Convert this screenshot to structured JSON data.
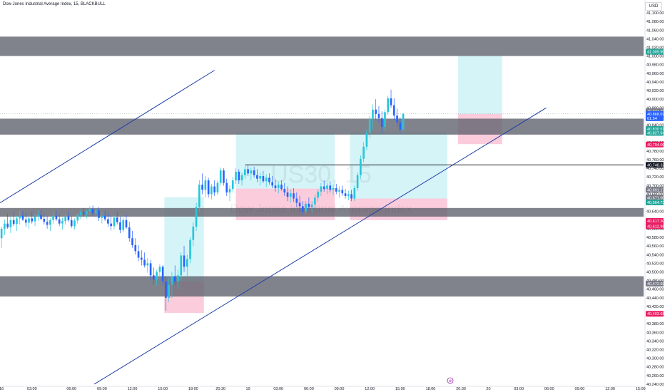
{
  "header": {
    "title": "Dow Jones Industrial Average Index, 15, BLACKBULL",
    "currency": "USD"
  },
  "watermark": {
    "symbol": "US30, 15",
    "subtitle": "Dow Jones Industrial Average Index"
  },
  "colors": {
    "bull": "#2962ff",
    "bear": "#e91e63",
    "bull_wick": "#26c6da",
    "zone_gray": "#5d606b",
    "target_zone": "#b2ebf2",
    "stop_zone": "#f8bbd0",
    "trendline": "#1e3fa8",
    "level_line": "#000000"
  },
  "chart_data": {
    "type": "candlestick",
    "title": "Dow Jones Industrial Average Index, 15, BLACKBULL",
    "symbol": "US30",
    "interval": "15",
    "y_axis": {
      "position": "right",
      "ylim": [
        40235,
        41110
      ],
      "ticks": [
        41100,
        41080,
        41060,
        41040,
        41020,
        41000,
        40980,
        40960,
        40940,
        40920,
        40900,
        40880,
        40860,
        40840,
        40820,
        40800,
        40780,
        40760,
        40740,
        40720,
        40700,
        40680,
        40660,
        40640,
        40620,
        40600,
        40580,
        40560,
        40540,
        40520,
        40500,
        40480,
        40460,
        40440,
        40420,
        40400,
        40380,
        40360,
        40340,
        40320,
        40300,
        40280,
        40260,
        40240
      ]
    },
    "x_axis": {
      "tick_labels": [
        "16",
        "03:00",
        "06:00",
        "09:00",
        "12:00",
        "15:00",
        "18:00",
        "20:30",
        "19",
        "03:00",
        "06:00",
        "09:00",
        "12:00",
        "15:00",
        "18:00",
        "20:30",
        "20",
        "03:00",
        "06:00",
        "09:00",
        "12:00",
        "15:00"
      ],
      "tick_slots": [
        0,
        10,
        23,
        33,
        43,
        53,
        63,
        72,
        81,
        91,
        101,
        111,
        121,
        131,
        141,
        151,
        160,
        170,
        180,
        190,
        200,
        210
      ]
    },
    "price_tags": [
      {
        "value": "41,009.90",
        "price": 41010,
        "color": "#26a69a"
      },
      {
        "value": "40,871.20",
        "price": 40872,
        "color": "#787b86"
      },
      {
        "value": "40,868.07",
        "price": 40866,
        "color": "#2962ff"
      },
      {
        "value": "01:54",
        "price": 40856,
        "color": "#2962ff"
      },
      {
        "value": "40,830.51",
        "price": 40831,
        "color": "#26a69a"
      },
      {
        "value": "40,827.94",
        "price": 40822,
        "color": "#26a69a"
      },
      {
        "value": "40,794.00",
        "price": 40795,
        "color": "#e91e63"
      },
      {
        "value": "40,748.32",
        "price": 40748,
        "color": "#131722"
      },
      {
        "value": "40,691.17",
        "price": 40690,
        "color": "#787b86"
      },
      {
        "value": "40,671.00",
        "price": 40672,
        "color": "#787b86"
      },
      {
        "value": "40,664.73",
        "price": 40661,
        "color": "#26a69a"
      },
      {
        "value": "40,617.30",
        "price": 40618,
        "color": "#e91e63"
      },
      {
        "value": "40,612.98",
        "price": 40606,
        "color": "#e91e63"
      },
      {
        "value": "40,472.60",
        "price": 40473,
        "color": "#787b86"
      },
      {
        "value": "40,403.68",
        "price": 40403,
        "color": "#e91e63"
      }
    ],
    "horizontal_zones": [
      {
        "from": 41000,
        "to": 41045
      },
      {
        "from": 40818,
        "to": 40855
      },
      {
        "from": 40628,
        "to": 40648
      },
      {
        "from": 40443,
        "to": 40490
      }
    ],
    "position_boxes": [
      {
        "x_from": 53.5,
        "x_to": 66.5,
        "target_top": 40673,
        "entry": 40478,
        "stop_bottom": 40405
      },
      {
        "x_from": 77,
        "x_to": 109.5,
        "target_top": 40824,
        "entry": 40693,
        "stop_bottom": 40620
      },
      {
        "x_from": 114.5,
        "x_to": 146.5,
        "target_top": 40824,
        "entry": 40670,
        "stop_bottom": 40620
      },
      {
        "x_from": 150,
        "x_to": 164.5,
        "target_top": 41000,
        "entry": 40866,
        "stop_bottom": 40796
      }
    ],
    "trendlines": [
      {
        "x1": -0.5,
        "y1": 40660,
        "x2": 70,
        "y2": 40967
      },
      {
        "x1": 30.5,
        "y1": 40240,
        "x2": 179,
        "y2": 40880
      }
    ],
    "level_line": {
      "price": 40748,
      "x_from": 80
    },
    "current_price": 40866,
    "candles": [
      [
        40578,
        40605,
        40555,
        40600
      ],
      [
        40600,
        40622,
        40585,
        40612
      ],
      [
        40612,
        40635,
        40600,
        40603
      ],
      [
        40603,
        40628,
        40590,
        40620
      ],
      [
        40620,
        40640,
        40606,
        40611
      ],
      [
        40611,
        40630,
        40595,
        40624
      ],
      [
        40624,
        40642,
        40610,
        40630
      ],
      [
        40630,
        40642,
        40618,
        40621
      ],
      [
        40621,
        40636,
        40605,
        40614
      ],
      [
        40614,
        40628,
        40600,
        40624
      ],
      [
        40624,
        40640,
        40612,
        40617
      ],
      [
        40617,
        40634,
        40606,
        40628
      ],
      [
        40628,
        40642,
        40618,
        40632
      ],
      [
        40632,
        40644,
        40620,
        40623
      ],
      [
        40623,
        40636,
        40610,
        40616
      ],
      [
        40616,
        40630,
        40600,
        40609
      ],
      [
        40609,
        40624,
        40595,
        40620
      ],
      [
        40620,
        40638,
        40612,
        40630
      ],
      [
        40630,
        40642,
        40618,
        40622
      ],
      [
        40622,
        40634,
        40606,
        40612
      ],
      [
        40612,
        40626,
        40598,
        40618
      ],
      [
        40618,
        40634,
        40610,
        40629
      ],
      [
        40629,
        40640,
        40616,
        40620
      ],
      [
        40620,
        40630,
        40602,
        40606
      ],
      [
        40606,
        40624,
        40598,
        40619
      ],
      [
        40619,
        40636,
        40612,
        40632
      ],
      [
        40632,
        40644,
        40622,
        40638
      ],
      [
        40638,
        40648,
        40628,
        40634
      ],
      [
        40634,
        40644,
        40624,
        40640
      ],
      [
        40640,
        40652,
        40632,
        40646
      ],
      [
        40646,
        40654,
        40630,
        40636
      ],
      [
        40636,
        40648,
        40626,
        40642
      ],
      [
        40642,
        40650,
        40618,
        40625
      ],
      [
        40625,
        40638,
        40612,
        40630
      ],
      [
        40630,
        40642,
        40618,
        40622
      ],
      [
        40622,
        40636,
        40605,
        40612
      ],
      [
        40612,
        40630,
        40596,
        40606
      ],
      [
        40606,
        40630,
        40598,
        40626
      ],
      [
        40626,
        40640,
        40610,
        40615
      ],
      [
        40615,
        40628,
        40590,
        40597
      ],
      [
        40597,
        40626,
        40592,
        40620
      ],
      [
        40620,
        40632,
        40600,
        40603
      ],
      [
        40603,
        40616,
        40570,
        40578
      ],
      [
        40578,
        40595,
        40556,
        40562
      ],
      [
        40562,
        40578,
        40540,
        40548
      ],
      [
        40548,
        40562,
        40525,
        40533
      ],
      [
        40533,
        40550,
        40515,
        40528
      ],
      [
        40528,
        40545,
        40510,
        40515
      ],
      [
        40515,
        40532,
        40498,
        40520
      ],
      [
        40520,
        40528,
        40480,
        40492
      ],
      [
        40492,
        40510,
        40470,
        40482
      ],
      [
        40482,
        40505,
        40468,
        40500
      ],
      [
        40500,
        40518,
        40485,
        40512
      ],
      [
        40512,
        40516,
        40470,
        40478
      ],
      [
        40478,
        40490,
        40410,
        40440
      ],
      [
        40440,
        40485,
        40430,
        40470
      ],
      [
        40470,
        40500,
        40440,
        40490
      ],
      [
        40490,
        40515,
        40470,
        40478
      ],
      [
        40478,
        40505,
        40460,
        40492
      ],
      [
        40492,
        40545,
        40480,
        40538
      ],
      [
        40538,
        40560,
        40500,
        40512
      ],
      [
        40512,
        40540,
        40490,
        40530
      ],
      [
        40530,
        40580,
        40520,
        40574
      ],
      [
        40574,
        40615,
        40560,
        40605
      ],
      [
        40605,
        40660,
        40595,
        40650
      ],
      [
        40650,
        40712,
        40640,
        40702
      ],
      [
        40702,
        40728,
        40680,
        40690
      ],
      [
        40690,
        40722,
        40672,
        40712
      ],
      [
        40712,
        40718,
        40672,
        40680
      ],
      [
        40680,
        40704,
        40668,
        40698
      ],
      [
        40698,
        40712,
        40676,
        40684
      ],
      [
        40684,
        40712,
        40678,
        40706
      ],
      [
        40706,
        40742,
        40700,
        40735
      ],
      [
        40735,
        40740,
        40700,
        40706
      ],
      [
        40706,
        40716,
        40676,
        40684
      ],
      [
        40684,
        40700,
        40664,
        40692
      ],
      [
        40692,
        40720,
        40684,
        40712
      ],
      [
        40712,
        40740,
        40704,
        40732
      ],
      [
        40732,
        40738,
        40704,
        40712
      ],
      [
        40712,
        40730,
        40700,
        40724
      ],
      [
        40724,
        40744,
        40716,
        40738
      ],
      [
        40738,
        40748,
        40722,
        40728
      ],
      [
        40728,
        40742,
        40712,
        40735
      ],
      [
        40735,
        40744,
        40718,
        40724
      ],
      [
        40724,
        40738,
        40708,
        40716
      ],
      [
        40716,
        40730,
        40700,
        40722
      ],
      [
        40722,
        40734,
        40706,
        40710
      ],
      [
        40710,
        40726,
        40696,
        40718
      ],
      [
        40718,
        40728,
        40702,
        40708
      ],
      [
        40708,
        40722,
        40694,
        40700
      ],
      [
        40700,
        40714,
        40686,
        40694
      ],
      [
        40694,
        40708,
        40682,
        40702
      ],
      [
        40702,
        40712,
        40688,
        40692
      ],
      [
        40692,
        40706,
        40676,
        40684
      ],
      [
        40684,
        40698,
        40664,
        40674
      ],
      [
        40674,
        40690,
        40660,
        40682
      ],
      [
        40682,
        40694,
        40662,
        40670
      ],
      [
        40670,
        40684,
        40650,
        40660
      ],
      [
        40660,
        40676,
        40640,
        40652
      ],
      [
        40652,
        40664,
        40632,
        40640
      ],
      [
        40640,
        40664,
        40634,
        40658
      ],
      [
        40658,
        40672,
        40644,
        40650
      ],
      [
        40650,
        40664,
        40636,
        40656
      ],
      [
        40656,
        40680,
        40648,
        40672
      ],
      [
        40672,
        40692,
        40662,
        40686
      ],
      [
        40686,
        40706,
        40676,
        40698
      ],
      [
        40698,
        40712,
        40686,
        40692
      ],
      [
        40692,
        40706,
        40680,
        40700
      ],
      [
        40700,
        40710,
        40684,
        40690
      ],
      [
        40690,
        40702,
        40678,
        40694
      ],
      [
        40694,
        40704,
        40680,
        40686
      ],
      [
        40686,
        40698,
        40672,
        40690
      ],
      [
        40690,
        40700,
        40676,
        40682
      ],
      [
        40682,
        40692,
        40670,
        40676
      ],
      [
        40676,
        40688,
        40666,
        40680
      ],
      [
        40680,
        40690,
        40664,
        40670
      ],
      [
        40670,
        40700,
        40664,
        40694
      ],
      [
        40694,
        40730,
        40688,
        40724
      ],
      [
        40724,
        40770,
        40716,
        40762
      ],
      [
        40762,
        40800,
        40754,
        40790
      ],
      [
        40790,
        40830,
        40782,
        40822
      ],
      [
        40822,
        40862,
        40812,
        40854
      ],
      [
        40854,
        40888,
        40830,
        40876
      ],
      [
        40876,
        40900,
        40852,
        40866
      ],
      [
        40866,
        40884,
        40846,
        40856
      ],
      [
        40856,
        40872,
        40820,
        40836
      ],
      [
        40836,
        40876,
        40828,
        40870
      ],
      [
        40870,
        40908,
        40864,
        40902
      ],
      [
        40902,
        40922,
        40880,
        40886
      ],
      [
        40886,
        40902,
        40852,
        40862
      ],
      [
        40862,
        40878,
        40836,
        40846
      ],
      [
        40846,
        40858,
        40822,
        40830
      ],
      [
        40830,
        40868,
        40826,
        40866
      ]
    ],
    "candle_slot_range": [
      -0.5,
      211
    ]
  }
}
